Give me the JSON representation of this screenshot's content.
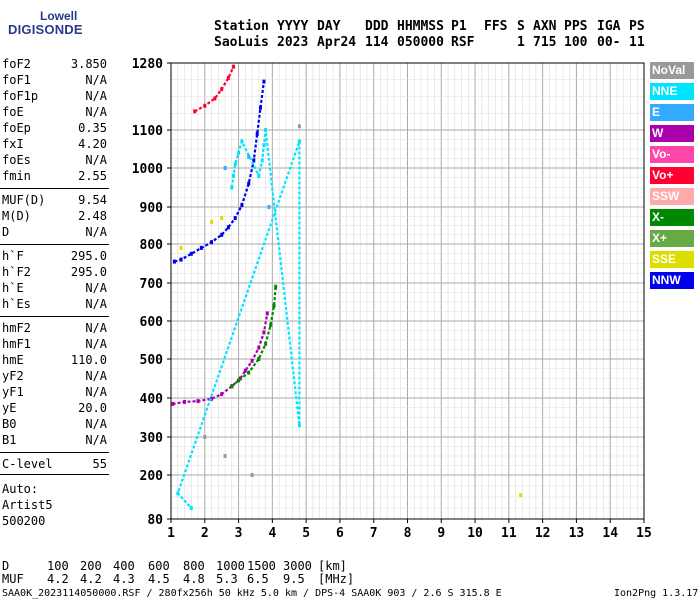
{
  "logo": {
    "line1": "Lowell",
    "line2": "DIGISONDE"
  },
  "header": {
    "labels": [
      "Station",
      "YYYY",
      "DAY",
      "DDD",
      "HHMMSS",
      "P1",
      "FFS",
      "S",
      "AXN",
      "PPS",
      "IGA",
      "PS"
    ],
    "values": [
      "SaoLuis",
      "2023",
      "Apr24",
      "114",
      "050000",
      "RSF",
      "",
      "1",
      "715",
      "100",
      "00-",
      "11"
    ]
  },
  "params": [
    {
      "k": "foF2",
      "v": "3.850"
    },
    {
      "k": "foF1",
      "v": "N/A"
    },
    {
      "k": "foF1p",
      "v": "N/A"
    },
    {
      "k": "foE",
      "v": "N/A"
    },
    {
      "k": "foEp",
      "v": "0.35"
    },
    {
      "k": "fxI",
      "v": "4.20"
    },
    {
      "k": "foEs",
      "v": "N/A"
    },
    {
      "k": "fmin",
      "v": "2.55"
    },
    {
      "k": "MUF(D)",
      "v": "9.54"
    },
    {
      "k": "M(D)",
      "v": "2.48"
    },
    {
      "k": "D",
      "v": "N/A"
    },
    {
      "k": "h`F",
      "v": "295.0"
    },
    {
      "k": "h`F2",
      "v": "295.0"
    },
    {
      "k": "h`E",
      "v": "N/A"
    },
    {
      "k": "h`Es",
      "v": "N/A"
    },
    {
      "k": "hmF2",
      "v": "N/A"
    },
    {
      "k": "hmF1",
      "v": "N/A"
    },
    {
      "k": "hmE",
      "v": "110.0"
    },
    {
      "k": "yF2",
      "v": "N/A"
    },
    {
      "k": "yF1",
      "v": "N/A"
    },
    {
      "k": "yE",
      "v": "20.0"
    },
    {
      "k": "B0",
      "v": "N/A"
    },
    {
      "k": "B1",
      "v": "N/A"
    },
    {
      "k": "C-level",
      "v": "55"
    }
  ],
  "autoscale": {
    "line1": "Auto:",
    "line2": "Artist5",
    "line3": "500200"
  },
  "legend": [
    {
      "label": "NoVal",
      "color": "#999999"
    },
    {
      "label": "NNE",
      "color": "#00e5ff"
    },
    {
      "label": "E",
      "color": "#33aaff"
    },
    {
      "label": "W",
      "color": "#aa00aa"
    },
    {
      "label": "Vo-",
      "color": "#ff44aa"
    },
    {
      "label": "Vo+",
      "color": "#ff0033"
    },
    {
      "label": "SSW",
      "color": "#ffaaaa"
    },
    {
      "label": "X-",
      "color": "#008800"
    },
    {
      "label": "X+",
      "color": "#66aa44"
    },
    {
      "label": "SSE",
      "color": "#dddd00"
    },
    {
      "label": "NNW",
      "color": "#0000ee"
    }
  ],
  "chart_data": {
    "type": "scatter",
    "title": "",
    "xlabel": "",
    "ylabel": "",
    "xlim": [
      1,
      15
    ],
    "ylim": [
      80,
      1280
    ],
    "x_ticks": [
      1,
      2,
      3,
      4,
      5,
      6,
      7,
      8,
      9,
      10,
      11,
      12,
      13,
      14,
      15
    ],
    "y_ticks": [
      80,
      200,
      300,
      400,
      500,
      600,
      700,
      800,
      900,
      1000,
      1100,
      1280
    ],
    "grid": true,
    "series": [
      {
        "name": "W",
        "color": "#aa00aa",
        "points": [
          [
            1.05,
            385
          ],
          [
            1.4,
            390
          ],
          [
            1.8,
            392
          ],
          [
            2.2,
            398
          ],
          [
            2.5,
            410
          ],
          [
            2.8,
            430
          ],
          [
            3.05,
            450
          ],
          [
            3.2,
            470
          ],
          [
            3.4,
            495
          ],
          [
            3.6,
            530
          ],
          [
            3.75,
            570
          ],
          [
            3.85,
            620
          ]
        ]
      },
      {
        "name": "X-",
        "color": "#008800",
        "points": [
          [
            2.8,
            430
          ],
          [
            3.0,
            445
          ],
          [
            3.3,
            465
          ],
          [
            3.6,
            500
          ],
          [
            3.8,
            540
          ],
          [
            3.95,
            590
          ],
          [
            4.05,
            640
          ],
          [
            4.1,
            690
          ]
        ]
      },
      {
        "name": "NNW",
        "color": "#0000ee",
        "points": [
          [
            1.1,
            755
          ],
          [
            1.3,
            760
          ],
          [
            1.6,
            775
          ],
          [
            1.9,
            790
          ],
          [
            2.2,
            805
          ],
          [
            2.5,
            825
          ],
          [
            2.7,
            845
          ],
          [
            2.9,
            870
          ],
          [
            3.1,
            905
          ],
          [
            3.3,
            960
          ],
          [
            3.45,
            1020
          ],
          [
            3.55,
            1090
          ],
          [
            3.65,
            1160
          ],
          [
            3.75,
            1230
          ]
        ]
      },
      {
        "name": "Vo+",
        "color": "#ff0033",
        "points": [
          [
            1.7,
            1150
          ],
          [
            2.0,
            1165
          ],
          [
            2.3,
            1185
          ],
          [
            2.5,
            1210
          ],
          [
            2.7,
            1240
          ],
          [
            2.85,
            1270
          ]
        ]
      },
      {
        "name": "NNE",
        "color": "#00e5ff",
        "points": [
          [
            2.8,
            950
          ],
          [
            2.85,
            980
          ],
          [
            2.9,
            1010
          ],
          [
            3.0,
            1040
          ],
          [
            3.1,
            1070
          ],
          [
            3.6,
            980
          ],
          [
            3.7,
            1020
          ],
          [
            3.75,
            1060
          ],
          [
            3.8,
            1100
          ],
          [
            4.8,
            330
          ],
          [
            4.8,
            1070
          ],
          [
            1.2,
            150
          ],
          [
            1.6,
            110
          ]
        ]
      },
      {
        "name": "SSE",
        "color": "#dddd00",
        "points": [
          [
            1.3,
            790
          ],
          [
            2.2,
            860
          ],
          [
            2.5,
            870
          ],
          [
            11.35,
            145
          ]
        ]
      },
      {
        "name": "E",
        "color": "#33aaff",
        "points": [
          [
            2.6,
            1000
          ],
          [
            3.3,
            1030
          ],
          [
            3.9,
            900
          ]
        ]
      },
      {
        "name": "NoVal",
        "color": "#999999",
        "points": [
          [
            2.0,
            300
          ],
          [
            2.6,
            250
          ],
          [
            3.4,
            200
          ],
          [
            4.8,
            1110
          ]
        ]
      }
    ]
  },
  "footer": {
    "d_label": "D",
    "d_values": [
      "100",
      "200",
      "400",
      "600",
      "800",
      "1000",
      "1500",
      "3000"
    ],
    "d_unit": "[km]",
    "muf_label": "MUF",
    "muf_values": [
      "4.2",
      "4.2",
      "4.3",
      "4.5",
      "4.8",
      "5.3",
      "6.5",
      "9.5"
    ],
    "muf_unit": "[MHz]",
    "file_info": "SAA0K_2023114050000.RSF / 280fx256h 50 kHz 5.0 km / DPS-4 SAA0K 903 / 2.6 S 315.8 E",
    "version": "Ion2Png 1.3.17"
  }
}
